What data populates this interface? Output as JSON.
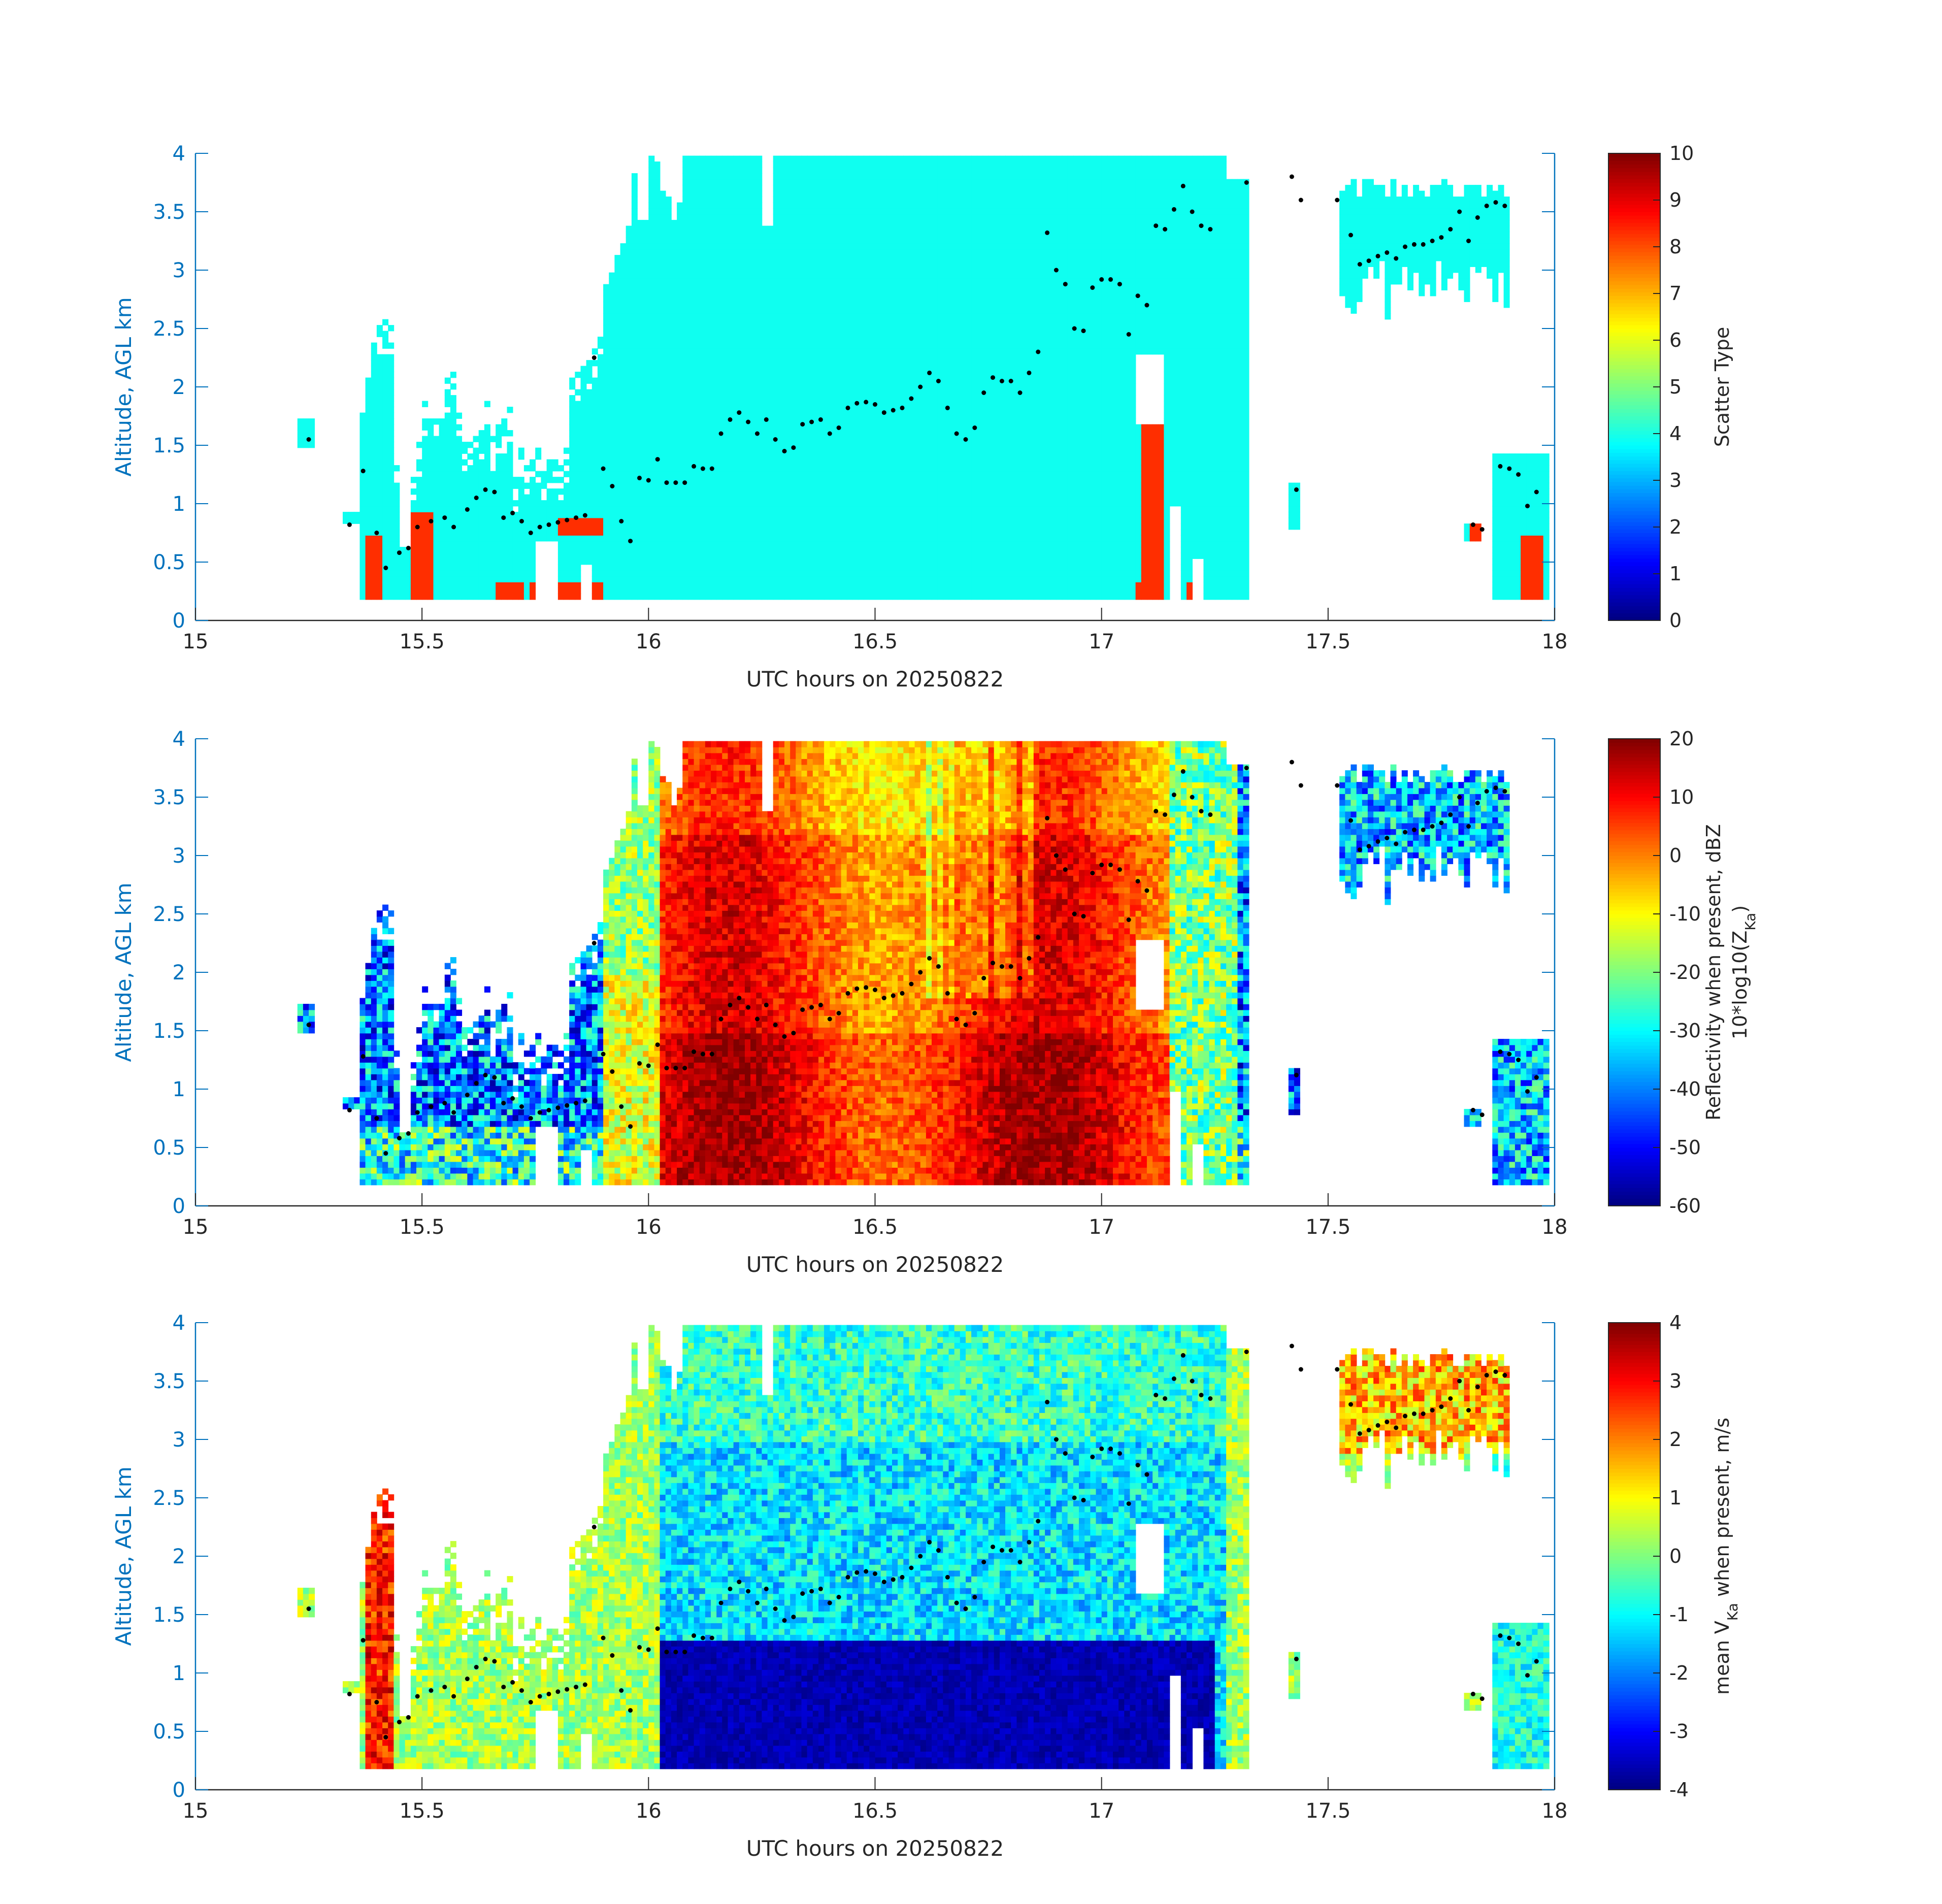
{
  "chart_data": [
    {
      "type": "heatmap",
      "name": "scatter-type",
      "xlabel": "UTC hours on 20250822",
      "ylabel": "Altitude, AGL km",
      "xlim": [
        15,
        18
      ],
      "ylim": [
        0,
        4
      ],
      "xticks": [
        "15",
        "15.5",
        "16",
        "16.5",
        "17",
        "17.5",
        "18"
      ],
      "yticks": [
        "0",
        "0.5",
        "1",
        "1.5",
        "2",
        "2.5",
        "3",
        "3.5",
        "4"
      ],
      "colorbar": {
        "label": "Scatter Type",
        "label2": "",
        "label2_sub": "",
        "label2_post": "",
        "range": [
          0,
          10
        ],
        "ticks": [
          "0",
          "1",
          "2",
          "3",
          "4",
          "5",
          "6",
          "7",
          "8",
          "9",
          "10"
        ],
        "colormap": "jet"
      },
      "field": "scatter"
    },
    {
      "type": "heatmap",
      "name": "reflectivity",
      "xlabel": "UTC hours on 20250822",
      "ylabel": "Altitude, AGL km",
      "xlim": [
        15,
        18
      ],
      "ylim": [
        0,
        4
      ],
      "xticks": [
        "15",
        "15.5",
        "16",
        "16.5",
        "17",
        "17.5",
        "18"
      ],
      "yticks": [
        "0",
        "0.5",
        "1",
        "1.5",
        "2",
        "2.5",
        "3",
        "3.5",
        "4"
      ],
      "colorbar": {
        "label": "Reflectivity when present, dBZ",
        "label2": "10*log10(Z",
        "label2_sub": "Ka",
        "label2_post": ")",
        "range": [
          -60,
          20
        ],
        "ticks": [
          "-60",
          "-50",
          "-40",
          "-30",
          "-20",
          "-10",
          "0",
          "10",
          "20"
        ],
        "colormap": "jet"
      },
      "field": "reflectivity"
    },
    {
      "type": "heatmap",
      "name": "mean-velocity",
      "xlabel": "UTC hours on 20250822",
      "ylabel": "Altitude, AGL km",
      "xlim": [
        15,
        18
      ],
      "ylim": [
        0,
        4
      ],
      "xticks": [
        "15",
        "15.5",
        "16",
        "16.5",
        "17",
        "17.5",
        "18"
      ],
      "yticks": [
        "0",
        "0.5",
        "1",
        "1.5",
        "2",
        "2.5",
        "3",
        "3.5",
        "4"
      ],
      "colorbar": {
        "label": "mean V",
        "label_sub": "Ka",
        "label_post": " when present, m/s",
        "range": [
          -4,
          4
        ],
        "ticks": [
          "-4",
          "-3",
          "-2",
          "-1",
          "0",
          "1",
          "2",
          "3",
          "4"
        ],
        "colormap": "jet"
      },
      "field": "velocity"
    }
  ],
  "cloud_base_points": [
    [
      15.25,
      1.55
    ],
    [
      15.34,
      0.82
    ],
    [
      15.37,
      1.28
    ],
    [
      15.4,
      0.75
    ],
    [
      15.42,
      0.45
    ],
    [
      15.45,
      0.58
    ],
    [
      15.47,
      0.62
    ],
    [
      15.49,
      0.8
    ],
    [
      15.52,
      0.85
    ],
    [
      15.55,
      0.88
    ],
    [
      15.57,
      0.8
    ],
    [
      15.6,
      0.95
    ],
    [
      15.62,
      1.05
    ],
    [
      15.64,
      1.12
    ],
    [
      15.66,
      1.1
    ],
    [
      15.68,
      0.88
    ],
    [
      15.7,
      0.92
    ],
    [
      15.72,
      0.85
    ],
    [
      15.74,
      0.75
    ],
    [
      15.76,
      0.8
    ],
    [
      15.78,
      0.82
    ],
    [
      15.8,
      0.84
    ],
    [
      15.82,
      0.86
    ],
    [
      15.84,
      0.88
    ],
    [
      15.86,
      0.9
    ],
    [
      15.88,
      2.25
    ],
    [
      15.9,
      1.3
    ],
    [
      15.92,
      1.15
    ],
    [
      15.94,
      0.85
    ],
    [
      15.96,
      0.68
    ],
    [
      15.98,
      1.22
    ],
    [
      16.0,
      1.2
    ],
    [
      16.02,
      1.38
    ],
    [
      16.04,
      1.18
    ],
    [
      16.06,
      1.18
    ],
    [
      16.08,
      1.18
    ],
    [
      16.1,
      1.32
    ],
    [
      16.12,
      1.3
    ],
    [
      16.14,
      1.3
    ],
    [
      16.16,
      1.6
    ],
    [
      16.18,
      1.72
    ],
    [
      16.2,
      1.78
    ],
    [
      16.22,
      1.7
    ],
    [
      16.24,
      1.6
    ],
    [
      16.26,
      1.72
    ],
    [
      16.28,
      1.55
    ],
    [
      16.3,
      1.45
    ],
    [
      16.32,
      1.48
    ],
    [
      16.34,
      1.68
    ],
    [
      16.36,
      1.7
    ],
    [
      16.38,
      1.72
    ],
    [
      16.4,
      1.6
    ],
    [
      16.42,
      1.65
    ],
    [
      16.44,
      1.82
    ],
    [
      16.46,
      1.86
    ],
    [
      16.48,
      1.87
    ],
    [
      16.5,
      1.85
    ],
    [
      16.52,
      1.78
    ],
    [
      16.54,
      1.8
    ],
    [
      16.56,
      1.82
    ],
    [
      16.58,
      1.9
    ],
    [
      16.6,
      2.0
    ],
    [
      16.62,
      2.12
    ],
    [
      16.64,
      2.05
    ],
    [
      16.66,
      1.82
    ],
    [
      16.68,
      1.6
    ],
    [
      16.7,
      1.55
    ],
    [
      16.72,
      1.65
    ],
    [
      16.74,
      1.95
    ],
    [
      16.76,
      2.08
    ],
    [
      16.78,
      2.05
    ],
    [
      16.8,
      2.05
    ],
    [
      16.82,
      1.95
    ],
    [
      16.84,
      2.12
    ],
    [
      16.86,
      2.3
    ],
    [
      16.88,
      3.32
    ],
    [
      16.9,
      3.0
    ],
    [
      16.92,
      2.88
    ],
    [
      16.94,
      2.5
    ],
    [
      16.96,
      2.48
    ],
    [
      16.98,
      2.85
    ],
    [
      17.0,
      2.92
    ],
    [
      17.02,
      2.92
    ],
    [
      17.04,
      2.88
    ],
    [
      17.06,
      2.45
    ],
    [
      17.08,
      2.78
    ],
    [
      17.1,
      2.7
    ],
    [
      17.12,
      3.38
    ],
    [
      17.14,
      3.35
    ],
    [
      17.16,
      3.52
    ],
    [
      17.18,
      3.72
    ],
    [
      17.2,
      3.5
    ],
    [
      17.22,
      3.38
    ],
    [
      17.24,
      3.35
    ],
    [
      17.32,
      3.75
    ],
    [
      17.42,
      3.8
    ],
    [
      17.44,
      3.6
    ],
    [
      17.52,
      3.6
    ],
    [
      17.55,
      3.3
    ],
    [
      17.57,
      3.05
    ],
    [
      17.59,
      3.08
    ],
    [
      17.61,
      3.12
    ],
    [
      17.63,
      3.15
    ],
    [
      17.65,
      3.1
    ],
    [
      17.67,
      3.2
    ],
    [
      17.69,
      3.22
    ],
    [
      17.71,
      3.22
    ],
    [
      17.73,
      3.25
    ],
    [
      17.75,
      3.28
    ],
    [
      17.77,
      3.35
    ],
    [
      17.79,
      3.5
    ],
    [
      17.81,
      3.25
    ],
    [
      17.83,
      3.45
    ],
    [
      17.85,
      3.55
    ],
    [
      17.87,
      3.58
    ],
    [
      17.89,
      3.55
    ],
    [
      17.43,
      1.12
    ],
    [
      17.82,
      0.82
    ],
    [
      17.84,
      0.78
    ],
    [
      17.88,
      1.32
    ],
    [
      17.9,
      1.3
    ],
    [
      17.92,
      1.25
    ],
    [
      17.94,
      0.98
    ],
    [
      17.96,
      1.1
    ]
  ]
}
